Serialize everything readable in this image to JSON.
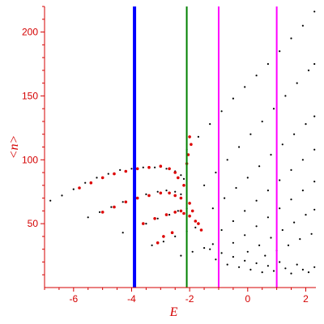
{
  "chart_data": {
    "type": "scatter",
    "title": "",
    "xlabel": "E",
    "ylabel": "<n>",
    "xlim": [
      -7,
      2.35
    ],
    "ylim": [
      0,
      220
    ],
    "xticks": [
      -6,
      -4,
      -2,
      0,
      2
    ],
    "xtick_labels": [
      "-6",
      "-4",
      "-2",
      "0",
      "2"
    ],
    "yticks": [
      50,
      100,
      150,
      200
    ],
    "ytick_labels": [
      "50",
      "100",
      "150",
      "200"
    ],
    "grid": false,
    "legend": "none",
    "colors": {
      "axis": "#d40000",
      "black_points": "#000000",
      "red_points": "#dd0000",
      "blue_line": "#0000ff",
      "green_line": "#008000",
      "magenta_line": "#ff00ff"
    },
    "vertical_lines": [
      {
        "x": -3.9,
        "color": "#0000ff",
        "width": 4
      },
      {
        "x": -2.1,
        "color": "#008000",
        "width": 2
      },
      {
        "x": -1.0,
        "color": "#ff00ff",
        "width": 2
      },
      {
        "x": 1.0,
        "color": "#ff00ff",
        "width": 2
      }
    ],
    "series": [
      {
        "color": "#000000",
        "points": [
          [
            -6.8,
            68
          ],
          [
            -6.4,
            72
          ],
          [
            -6.0,
            77
          ],
          [
            -5.6,
            82
          ],
          [
            -5.2,
            86
          ],
          [
            -4.8,
            89
          ],
          [
            -4.4,
            92
          ],
          [
            -4.0,
            93
          ],
          [
            -3.6,
            94
          ],
          [
            -3.2,
            94
          ],
          [
            -2.8,
            93
          ],
          [
            -2.5,
            91
          ],
          [
            -2.3,
            88
          ],
          [
            -2.2,
            85
          ]
        ]
      },
      {
        "color": "#000000",
        "points": [
          [
            -5.5,
            55
          ],
          [
            -5.1,
            59
          ],
          [
            -4.7,
            63
          ],
          [
            -4.3,
            67
          ],
          [
            -3.9,
            70
          ],
          [
            -3.5,
            73
          ],
          [
            -3.1,
            75
          ],
          [
            -2.8,
            76
          ],
          [
            -2.5,
            75
          ],
          [
            -2.3,
            73
          ]
        ]
      },
      {
        "color": "#000000",
        "points": [
          [
            -4.3,
            43
          ],
          [
            -3.9,
            46
          ],
          [
            -3.5,
            50
          ],
          [
            -3.1,
            54
          ],
          [
            -2.7,
            57
          ],
          [
            -2.4,
            60
          ],
          [
            -2.1,
            62
          ]
        ]
      },
      {
        "color": "#000000",
        "points": [
          [
            -3.3,
            33
          ],
          [
            -2.9,
            36
          ],
          [
            -2.5,
            40
          ],
          [
            -2.1,
            44
          ],
          [
            -1.8,
            47
          ]
        ]
      },
      {
        "color": "#000000",
        "points": [
          [
            -2.3,
            25
          ],
          [
            -1.9,
            28
          ],
          [
            -1.5,
            31
          ],
          [
            -1.2,
            34
          ]
        ]
      },
      {
        "color": "#000000",
        "points": [
          [
            -2.1,
            108
          ],
          [
            -1.7,
            118
          ],
          [
            -1.3,
            128
          ],
          [
            -0.9,
            138
          ],
          [
            -0.5,
            148
          ],
          [
            -0.1,
            157
          ],
          [
            0.3,
            166
          ],
          [
            0.7,
            175
          ],
          [
            1.1,
            185
          ],
          [
            1.5,
            195
          ],
          [
            1.9,
            205
          ],
          [
            2.3,
            216
          ]
        ]
      },
      {
        "color": "#000000",
        "points": [
          [
            -1.5,
            80
          ],
          [
            -1.1,
            90
          ],
          [
            -0.7,
            100
          ],
          [
            -0.3,
            110
          ],
          [
            0.1,
            120
          ],
          [
            0.5,
            130
          ],
          [
            0.9,
            140
          ],
          [
            1.3,
            150
          ],
          [
            1.7,
            160
          ],
          [
            2.1,
            170
          ],
          [
            2.3,
            175
          ]
        ]
      },
      {
        "color": "#000000",
        "points": [
          [
            -1.2,
            62
          ],
          [
            -0.8,
            70
          ],
          [
            -0.4,
            78
          ],
          [
            0.0,
            86
          ],
          [
            0.4,
            95
          ],
          [
            0.8,
            104
          ],
          [
            1.2,
            112
          ],
          [
            1.6,
            120
          ],
          [
            2.0,
            128
          ],
          [
            2.3,
            134
          ]
        ]
      },
      {
        "color": "#000000",
        "points": [
          [
            -0.9,
            45
          ],
          [
            -0.5,
            52
          ],
          [
            -0.1,
            60
          ],
          [
            0.3,
            68
          ],
          [
            0.7,
            76
          ],
          [
            1.1,
            84
          ],
          [
            1.5,
            92
          ],
          [
            1.9,
            100
          ],
          [
            2.3,
            108
          ]
        ]
      },
      {
        "color": "#000000",
        "points": [
          [
            -0.5,
            35
          ],
          [
            -0.1,
            41
          ],
          [
            0.3,
            48
          ],
          [
            0.7,
            55
          ],
          [
            1.1,
            62
          ],
          [
            1.5,
            69
          ],
          [
            1.9,
            76
          ],
          [
            2.3,
            83
          ]
        ]
      },
      {
        "color": "#000000",
        "points": [
          [
            0.0,
            28
          ],
          [
            0.4,
            33
          ],
          [
            0.8,
            39
          ],
          [
            1.2,
            45
          ],
          [
            1.6,
            51
          ],
          [
            2.0,
            57
          ],
          [
            2.3,
            61
          ]
        ]
      },
      {
        "color": "#000000",
        "points": [
          [
            0.6,
            25
          ],
          [
            1.0,
            29
          ],
          [
            1.4,
            33
          ],
          [
            1.8,
            38
          ],
          [
            2.2,
            42
          ]
        ]
      },
      {
        "color": "#000000",
        "points": [
          [
            -1.3,
            30
          ],
          [
            -1.1,
            22
          ],
          [
            -0.9,
            27
          ],
          [
            -0.7,
            18
          ],
          [
            -0.5,
            24
          ],
          [
            -0.3,
            16
          ],
          [
            -0.1,
            21
          ],
          [
            0.1,
            14
          ],
          [
            0.3,
            19
          ],
          [
            0.5,
            12
          ],
          [
            0.7,
            17
          ],
          [
            0.9,
            13
          ],
          [
            1.1,
            20
          ],
          [
            1.3,
            15
          ],
          [
            1.5,
            11
          ],
          [
            1.7,
            18
          ],
          [
            1.9,
            14
          ],
          [
            2.1,
            12
          ],
          [
            2.3,
            16
          ]
        ]
      },
      {
        "color": "#dd0000",
        "points": [
          [
            -5.8,
            78
          ],
          [
            -5.4,
            82
          ],
          [
            -5.0,
            86
          ],
          [
            -4.6,
            89
          ],
          [
            -4.2,
            91
          ],
          [
            -3.8,
            93
          ],
          [
            -3.4,
            94
          ],
          [
            -3.0,
            95
          ],
          [
            -2.7,
            93
          ],
          [
            -2.5,
            90
          ],
          [
            -2.4,
            86
          ]
        ]
      },
      {
        "color": "#dd0000",
        "points": [
          [
            -5.0,
            59
          ],
          [
            -4.6,
            63
          ],
          [
            -4.2,
            67
          ],
          [
            -3.8,
            70
          ],
          [
            -3.4,
            72
          ],
          [
            -3.0,
            74
          ],
          [
            -2.7,
            74
          ],
          [
            -2.5,
            72
          ],
          [
            -2.3,
            70
          ]
        ]
      },
      {
        "color": "#dd0000",
        "points": [
          [
            -3.6,
            50
          ],
          [
            -3.2,
            54
          ],
          [
            -2.8,
            57
          ],
          [
            -2.5,
            59
          ],
          [
            -2.3,
            60
          ],
          [
            -2.2,
            58
          ],
          [
            -2.0,
            56
          ],
          [
            -1.8,
            52
          ]
        ]
      },
      {
        "color": "#dd0000",
        "points": [
          [
            -2.1,
            97
          ],
          [
            -2.0,
            118
          ],
          [
            -1.95,
            112
          ],
          [
            -2.05,
            104
          ],
          [
            -2.2,
            80
          ],
          [
            -2.0,
            66
          ],
          [
            -1.9,
            60
          ],
          [
            -1.7,
            50
          ],
          [
            -1.6,
            45
          ],
          [
            -2.6,
            43
          ],
          [
            -2.9,
            40
          ],
          [
            -3.1,
            35
          ]
        ]
      }
    ]
  }
}
